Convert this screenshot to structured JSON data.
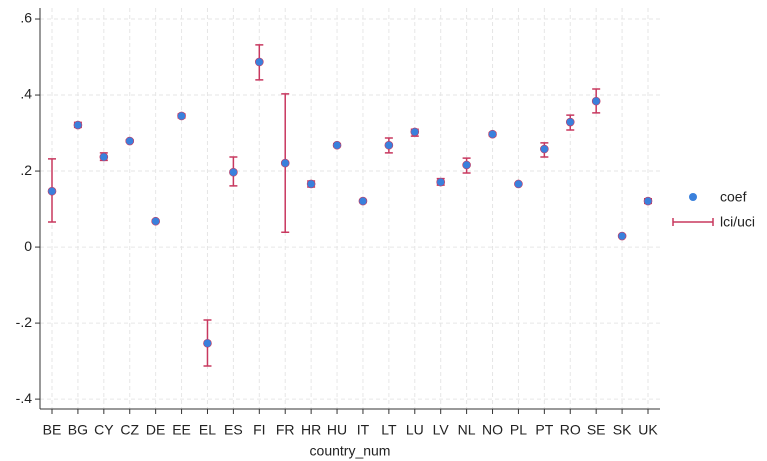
{
  "chart_data": {
    "type": "errorbar",
    "xlabel": "country_num",
    "categories": [
      "BE",
      "BG",
      "CY",
      "CZ",
      "DE",
      "EE",
      "EL",
      "ES",
      "FI",
      "FR",
      "HR",
      "HU",
      "IT",
      "LT",
      "LU",
      "LV",
      "NL",
      "NO",
      "PL",
      "PT",
      "RO",
      "SE",
      "SK",
      "UK"
    ],
    "series": [
      {
        "name": "coef",
        "color": "#3a80dc",
        "values": [
          0.147,
          0.321,
          0.237,
          0.279,
          0.068,
          0.345,
          -0.253,
          0.197,
          0.487,
          0.221,
          0.166,
          0.268,
          0.121,
          0.268,
          0.303,
          0.171,
          0.216,
          0.297,
          0.166,
          0.258,
          0.329,
          0.384,
          0.029,
          0.121
        ]
      },
      {
        "name": "lci/uci",
        "color": "#c8385f",
        "lower": [
          0.066,
          0.315,
          0.228,
          0.276,
          0.066,
          0.34,
          -0.313,
          0.161,
          0.44,
          0.039,
          0.158,
          0.265,
          0.119,
          0.248,
          0.292,
          0.163,
          0.195,
          0.293,
          0.164,
          0.237,
          0.308,
          0.353,
          0.027,
          0.115
        ],
        "upper": [
          0.232,
          0.328,
          0.248,
          0.282,
          0.071,
          0.35,
          -0.192,
          0.237,
          0.532,
          0.403,
          0.174,
          0.272,
          0.123,
          0.287,
          0.31,
          0.18,
          0.234,
          0.301,
          0.168,
          0.274,
          0.347,
          0.416,
          0.031,
          0.127
        ]
      }
    ],
    "ylim": [
      -0.426,
      0.629
    ],
    "yticks": [
      {
        "value": 0.6,
        "label": ".6"
      },
      {
        "value": 0.4,
        "label": ".4"
      },
      {
        "value": 0.2,
        "label": ".2"
      },
      0,
      {
        "value": -0.2,
        "label": "-.2"
      },
      {
        "value": -0.4,
        "label": "-.4"
      }
    ],
    "grid": true,
    "legend": "right"
  }
}
